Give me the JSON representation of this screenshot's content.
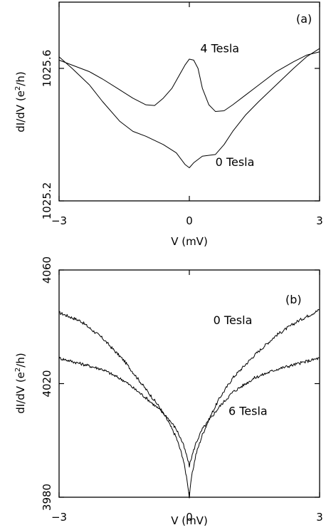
{
  "chart_data": [
    {
      "type": "line",
      "panel_label": "(a)",
      "xlabel": "V (mV)",
      "ylabel_main": "dI/dV (e",
      "ylabel_sup": "2",
      "ylabel_tail": "/h)",
      "xlim": [
        -3,
        3
      ],
      "ylim": [
        1025.2,
        1025.8
      ],
      "xticks": [
        -3,
        0,
        3
      ],
      "xtick_labels": [
        "−3",
        "0",
        "3"
      ],
      "yticks": [
        1025.2,
        1025.6
      ],
      "ytick_labels": [
        "1025.2",
        "1025.6"
      ],
      "series": [
        {
          "name": "4 Tesla",
          "x": [
            -3,
            -2.7,
            -2.3,
            -2,
            -1.6,
            -1.3,
            -1,
            -0.8,
            -0.6,
            -0.4,
            -0.25,
            -0.1,
            0,
            0.1,
            0.2,
            0.3,
            0.45,
            0.6,
            0.8,
            1,
            1.3,
            1.6,
            2,
            2.4,
            2.7,
            3
          ],
          "y": [
            1025.625,
            1025.61,
            1025.59,
            1025.568,
            1025.535,
            1025.51,
            1025.49,
            1025.488,
            1025.51,
            1025.54,
            1025.575,
            1025.61,
            1025.628,
            1025.625,
            1025.6,
            1025.54,
            1025.49,
            1025.47,
            1025.472,
            1025.49,
            1025.52,
            1025.55,
            1025.59,
            1025.62,
            1025.64,
            1025.65
          ]
        },
        {
          "name": "0 Tesla",
          "x": [
            -3,
            -2.7,
            -2.3,
            -2,
            -1.6,
            -1.3,
            -1,
            -0.6,
            -0.3,
            -0.1,
            0,
            0.1,
            0.3,
            0.6,
            0.8,
            1,
            1.3,
            1.6,
            2,
            2.4,
            2.7,
            3
          ],
          "y": [
            1025.635,
            1025.6,
            1025.55,
            1025.5,
            1025.44,
            1025.41,
            1025.395,
            1025.37,
            1025.345,
            1025.31,
            1025.3,
            1025.315,
            1025.335,
            1025.34,
            1025.37,
            1025.41,
            1025.46,
            1025.5,
            1025.55,
            1025.6,
            1025.635,
            1025.66
          ]
        }
      ],
      "annotations": [
        {
          "text": "4 Tesla",
          "x": 0.7,
          "y": 1025.648
        },
        {
          "text": "0 Tesla",
          "x": 1.05,
          "y": 1025.305
        }
      ]
    },
    {
      "type": "line",
      "panel_label": "(b)",
      "xlabel": "V (mV)",
      "ylabel_main": "dI/dV (e",
      "ylabel_sup": "2",
      "ylabel_tail": "/h)",
      "xlim": [
        -3,
        3
      ],
      "ylim": [
        3980,
        4060
      ],
      "xticks": [
        -3,
        0,
        3
      ],
      "xtick_labels": [
        "−3",
        "0",
        "3"
      ],
      "yticks": [
        3980,
        4020,
        4060
      ],
      "ytick_labels": [
        "3980",
        "4020",
        "4060"
      ],
      "series": [
        {
          "name": "0 Tesla",
          "x": [
            -3,
            -2.5,
            -2,
            -1.5,
            -1,
            -0.7,
            -0.5,
            -0.3,
            -0.15,
            -0.05,
            0,
            0.05,
            0.15,
            0.3,
            0.5,
            0.7,
            1,
            1.5,
            2,
            2.5,
            3
          ],
          "y": [
            4045,
            4042,
            4036,
            4028,
            4018,
            4012,
            4007,
            4001,
            3994,
            3986,
            3980,
            3987,
            3995,
            4002,
            4009,
            4015,
            4022,
            4030,
            4037,
            4042,
            4046
          ]
        },
        {
          "name": "6 Tesla",
          "x": [
            -3,
            -2.5,
            -2,
            -1.5,
            -1,
            -0.7,
            -0.5,
            -0.3,
            -0.15,
            -0.05,
            0,
            0.05,
            0.15,
            0.3,
            0.5,
            0.7,
            1,
            1.5,
            2,
            2.5,
            3
          ],
          "y": [
            4029,
            4027,
            4025,
            4021,
            4015,
            4011,
            4008,
            4004,
            3999,
            3994,
            3991,
            3994,
            3999,
            4004,
            4008,
            4012,
            4017,
            4022,
            4025,
            4027,
            4029
          ]
        }
      ],
      "annotations": [
        {
          "text": "0 Tesla",
          "x": 1.0,
          "y": 4041
        },
        {
          "text": "6 Tesla",
          "x": 1.35,
          "y": 4009
        }
      ]
    }
  ]
}
